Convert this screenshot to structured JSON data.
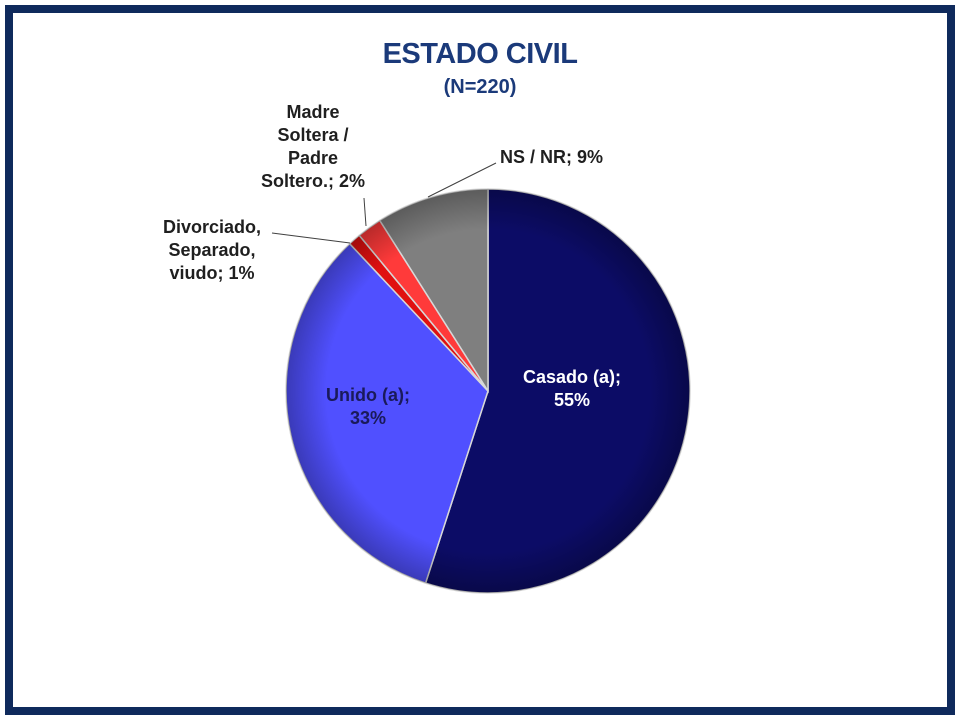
{
  "chart_data": {
    "type": "pie",
    "title": "ESTADO CIVIL",
    "subtitle": "(N=220)",
    "categories": [
      "Casado (a)",
      "Unido (a)",
      "Divorciado, Separado, viudo",
      "Madre Soltera / Padre Soltero.",
      "NS / NR"
    ],
    "values": [
      55,
      33,
      1,
      2,
      9
    ],
    "colors": [
      "#0c0c66",
      "#5050ff",
      "#e01010",
      "#ff3a3a",
      "#7f7f7f"
    ],
    "data_labels": [
      [
        "Casado (a);",
        "55%"
      ],
      [
        "Unido (a);",
        "33%"
      ],
      [
        "Divorciado,",
        "Separado,",
        "viudo; 1%"
      ],
      [
        "Madre",
        "Soltera /",
        "Padre",
        "Soltero.; 2%"
      ],
      [
        "NS / NR; 9%"
      ]
    ]
  }
}
